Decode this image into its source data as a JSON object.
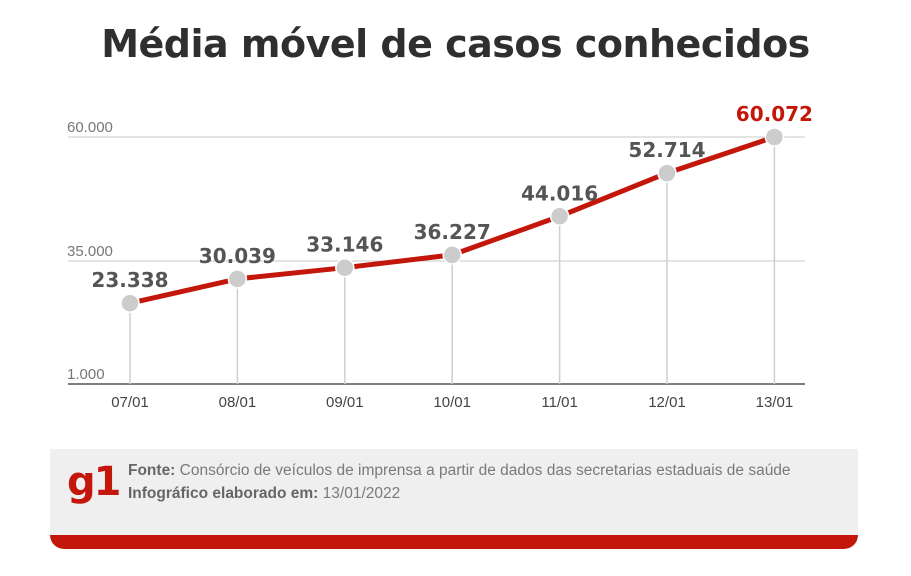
{
  "chart_data": {
    "type": "line",
    "title": "Média móvel de casos conhecidos",
    "categories": [
      "07/01",
      "08/01",
      "09/01",
      "10/01",
      "11/01",
      "12/01",
      "13/01"
    ],
    "values": [
      23338,
      30039,
      33146,
      36227,
      44016,
      52714,
      60072
    ],
    "value_labels": [
      "23.338",
      "30.039",
      "33.146",
      "36.227",
      "44.016",
      "52.714",
      "60.072"
    ],
    "yticks": [
      1000,
      35000,
      60000
    ],
    "ytick_labels": [
      "1.000",
      "35.000",
      "60.000"
    ],
    "ylim": [
      1000,
      60000
    ],
    "xlabel": "",
    "ylabel": "",
    "line_color": "#c4170c",
    "highlight_color": "#c4170c",
    "marker_color": "#cccccc"
  },
  "footer": {
    "logo": "g1",
    "source_label": "Fonte:",
    "source_text": "Consórcio de veículos de imprensa a partir de dados das secretarias estaduais de saúde",
    "made_label": "Infográfico elaborado em:",
    "made_date": "13/01/2022"
  },
  "colors": {
    "brand": "#c4170c",
    "footer_bg": "#efefef"
  }
}
